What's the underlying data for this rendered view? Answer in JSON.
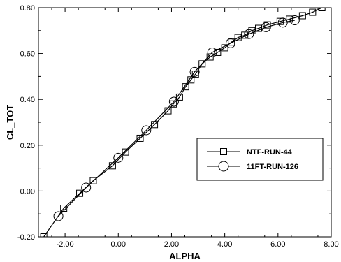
{
  "chart_data": {
    "type": "line",
    "xlabel": "ALPHA",
    "ylabel": "CL_TOT",
    "xlim": [
      -3,
      8
    ],
    "ylim": [
      -0.2,
      0.8
    ],
    "x_ticks": [
      -2,
      0,
      2,
      4,
      6,
      8
    ],
    "x_tick_labels": [
      "-2.00",
      "0.00",
      "2.00",
      "4.00",
      "6.00",
      "8.00"
    ],
    "y_ticks": [
      -0.2,
      0,
      0.2,
      0.4,
      0.6,
      0.8
    ],
    "y_tick_labels": [
      "-0.20",
      "0.00",
      "0.20",
      "0.40",
      "0.60",
      "0.80"
    ],
    "grid": false,
    "legend_position": "right-middle",
    "series": [
      {
        "name": "NTF-RUN-44",
        "marker": "square",
        "color": "#000000",
        "x": [
          -2.8,
          -2.05,
          -1.45,
          -0.94,
          -0.22,
          0.27,
          0.82,
          1.36,
          1.87,
          2.07,
          2.3,
          2.53,
          2.73,
          2.9,
          3.15,
          3.45,
          3.73,
          4.0,
          4.25,
          4.5,
          4.75,
          5.02,
          5.27,
          5.6,
          6.08,
          6.43,
          6.92,
          7.3,
          7.65
        ],
        "y": [
          -0.2,
          -0.075,
          -0.01,
          0.045,
          0.11,
          0.17,
          0.23,
          0.29,
          0.35,
          0.38,
          0.41,
          0.455,
          0.485,
          0.51,
          0.555,
          0.585,
          0.605,
          0.625,
          0.65,
          0.67,
          0.68,
          0.7,
          0.71,
          0.725,
          0.74,
          0.75,
          0.765,
          0.78,
          0.8
        ]
      },
      {
        "name": "11FT-RUN-126",
        "marker": "circle",
        "color": "#000000",
        "x": [
          -2.25,
          -1.21,
          0.0,
          1.05,
          2.09,
          2.87,
          3.53,
          4.22,
          4.91,
          5.55,
          6.18,
          6.63
        ],
        "y": [
          -0.11,
          0.015,
          0.145,
          0.265,
          0.39,
          0.52,
          0.605,
          0.645,
          0.685,
          0.715,
          0.735,
          0.745
        ]
      }
    ]
  }
}
